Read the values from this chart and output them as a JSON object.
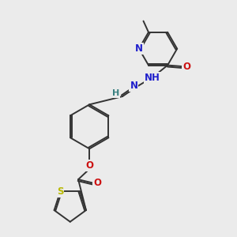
{
  "bg_color": "#ebebeb",
  "bond_color": "#333333",
  "bond_width": 1.4,
  "atom_colors": {
    "N": "#2020cc",
    "O": "#cc1111",
    "S": "#b8b800",
    "H": "#3a8080",
    "C": "#333333"
  },
  "font_size": 8.5,
  "fig_size": [
    3.0,
    3.0
  ],
  "dpi": 100
}
